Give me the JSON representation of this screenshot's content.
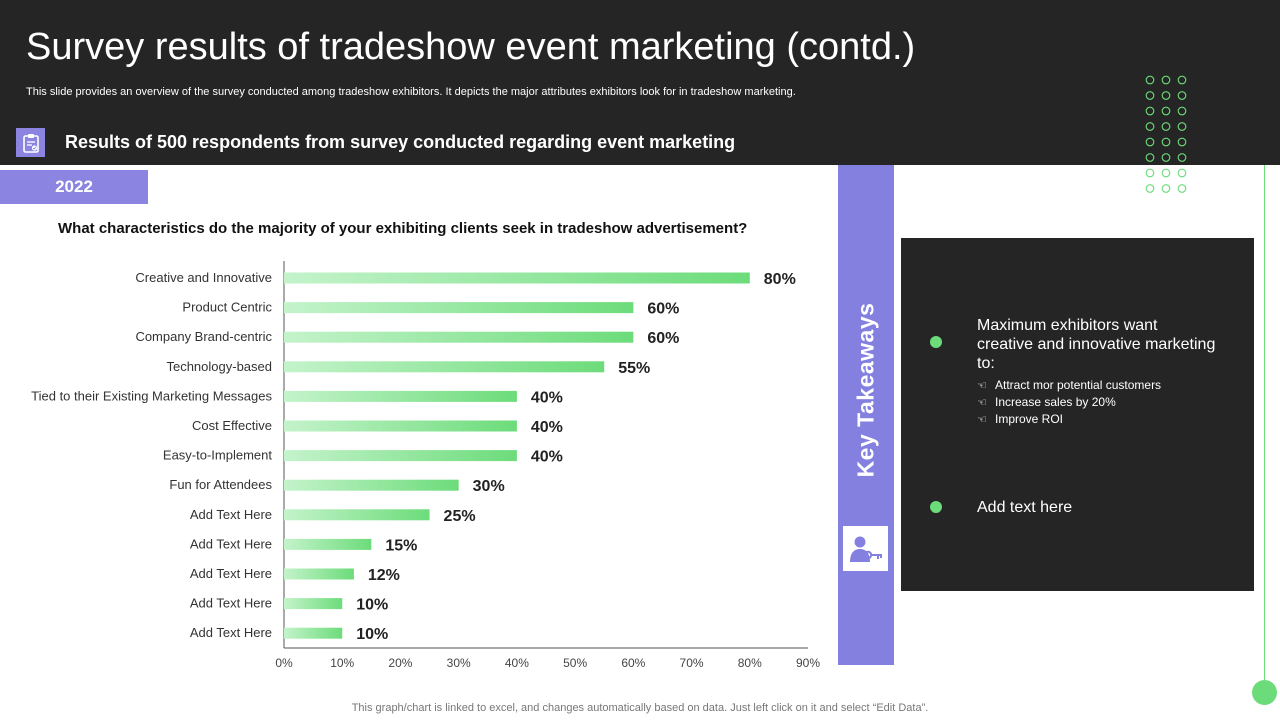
{
  "slide": {
    "title": "Survey results of tradeshow event marketing (contd.)",
    "subtitle": "This slide provides an overview of the survey conducted among tradeshow exhibitors. It depicts the major attributes exhibitors look for in tradeshow marketing.",
    "survey_heading": "Results of 500 respondents from survey conducted regarding event marketing",
    "year": "2022",
    "question": "What characteristics do the majority of your exhibiting clients seek  in tradeshow advertisement?",
    "footer_note": "This graph/chart is linked to excel,  and changes automatically based on data. Just left click on it and select “Edit Data”."
  },
  "key_takeaways": {
    "label": "Key Takeaways",
    "items": [
      {
        "text": "Maximum exhibitors want creative and innovative marketing to:",
        "bullets": [
          "Attract mor potential customers",
          "Increase sales by 20%",
          "Improve  ROI"
        ]
      },
      {
        "text": "Add text here"
      }
    ]
  },
  "icons": {
    "subheading": "clipboard-check-icon",
    "takeaway": "person-key-icon",
    "bullet": "pointing-hand-icon"
  },
  "colors": {
    "header_bg": "#252525",
    "accent_purple": "#8480e0",
    "accent_green": "#6cdc7a",
    "bar_light": "#c4f3cb",
    "bar_dark": "#6cdc7a"
  },
  "chart_data": {
    "type": "bar",
    "orientation": "horizontal",
    "categories": [
      "Creative and Innovative",
      "Product Centric",
      "Company Brand-centric",
      "Technology-based",
      "Tied to their Existing Marketing Messages",
      "Cost Effective",
      "Easy-to-Implement",
      "Fun for Attendees",
      "Add Text Here",
      "Add Text Here",
      "Add Text Here",
      "Add Text Here",
      "Add Text Here"
    ],
    "values": [
      80,
      60,
      60,
      55,
      40,
      40,
      40,
      30,
      25,
      15,
      12,
      10,
      10
    ],
    "value_labels": [
      "80%",
      "60%",
      "60%",
      "55%",
      "40%",
      "40%",
      "40%",
      "30%",
      "25%",
      "15%",
      "12%",
      "10%",
      "10%"
    ],
    "xlim": [
      0,
      90
    ],
    "xticks": [
      "0%",
      "10%",
      "20%",
      "30%",
      "40%",
      "50%",
      "60%",
      "70%",
      "80%",
      "90%"
    ],
    "grid": false,
    "legend": "none"
  }
}
